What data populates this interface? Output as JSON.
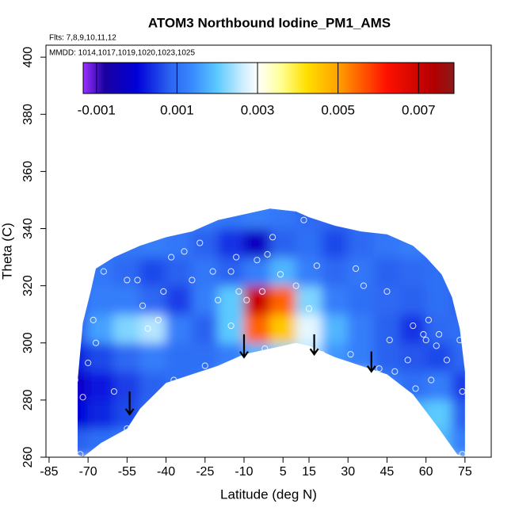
{
  "chart_data": {
    "type": "heatmap",
    "title": "ATOM3 Northbound Iodine_PM1_AMS",
    "annotations": [
      "Flts: 7,8,9,10,11,12",
      "MMDD: 1014,1017,1019,1020,1023,1025"
    ],
    "x_label": "Latitude (deg N)",
    "y_label": "Theta (C)",
    "xlim": [
      -86.2,
      85.1
    ],
    "ylim": [
      260,
      404.2
    ],
    "xticks": [
      -85,
      -70,
      -55,
      -40,
      -25,
      -10,
      5,
      15,
      30,
      45,
      60,
      75
    ],
    "yticks": [
      260,
      280,
      300,
      320,
      340,
      360,
      380,
      400
    ],
    "clim": [
      -0.00133,
      0.00788
    ],
    "cticks": [
      -0.001,
      0.001,
      0.003,
      0.005,
      0.007
    ],
    "colorscale": [
      {
        "value": -0.00133,
        "color": "#9b30ff"
      },
      {
        "value": -0.0008,
        "color": "#1a00a0"
      },
      {
        "value": 0.0,
        "color": "#0000d8"
      },
      {
        "value": 0.0008,
        "color": "#2a62f0"
      },
      {
        "value": 0.0014,
        "color": "#3a8cff"
      },
      {
        "value": 0.002,
        "color": "#5ccaff"
      },
      {
        "value": 0.0026,
        "color": "#c8ecff"
      },
      {
        "value": 0.003,
        "color": "#ffffff"
      },
      {
        "value": 0.0036,
        "color": "#ffff90"
      },
      {
        "value": 0.0042,
        "color": "#ffe000"
      },
      {
        "value": 0.005,
        "color": "#ffa000"
      },
      {
        "value": 0.0062,
        "color": "#ff1000"
      },
      {
        "value": 0.0074,
        "color": "#b00000"
      },
      {
        "value": 0.00788,
        "color": "#8b1a1a"
      }
    ],
    "grid": {
      "lat_edges": [
        -80,
        -70,
        -60,
        -50,
        -40,
        -30,
        -20,
        -10,
        0,
        10,
        20,
        30,
        40,
        50,
        60,
        70,
        80
      ],
      "theta_edges": [
        260,
        270,
        280,
        290,
        300,
        310,
        320,
        330,
        340,
        350
      ],
      "values": [
        [
          0.0008,
          0.001,
          0.0012,
          null,
          null,
          null,
          null,
          null,
          null,
          null,
          null,
          null,
          null,
          0.0016,
          0.0018,
          0.0012
        ],
        [
          0.0,
          0.0003,
          0.0006,
          0.0009,
          null,
          null,
          null,
          null,
          null,
          null,
          null,
          null,
          null,
          0.0018,
          0.002,
          0.0008
        ],
        [
          -0.0002,
          0.0002,
          0.0005,
          0.0008,
          0.001,
          0.0011,
          null,
          null,
          null,
          null,
          null,
          null,
          0.0012,
          0.001,
          0.0012,
          0.0005
        ],
        [
          0.0003,
          0.0006,
          0.0009,
          0.0012,
          0.001,
          0.001,
          0.0012,
          0.0018,
          0.0022,
          0.0025,
          0.0015,
          0.0012,
          0.0008,
          0.0007,
          0.0006,
          0.0009
        ],
        [
          0.0008,
          0.0016,
          0.0022,
          0.0025,
          0.0012,
          0.0008,
          0.002,
          0.0055,
          0.0045,
          0.0028,
          0.0018,
          0.0012,
          0.0008,
          0.0004,
          0.0009,
          0.001
        ],
        [
          0.001,
          0.0012,
          0.0012,
          0.0009,
          0.0005,
          0.0012,
          0.002,
          0.007,
          0.0055,
          0.0022,
          0.0012,
          0.001,
          0.0009,
          0.0008,
          0.001,
          0.0008
        ],
        [
          0.001,
          0.0011,
          0.0009,
          0.0006,
          0.0008,
          0.0011,
          0.0008,
          0.0012,
          0.0018,
          0.0012,
          0.0009,
          0.0011,
          0.0008,
          0.0009,
          0.001,
          0.0009
        ],
        [
          null,
          0.001,
          0.0011,
          0.0012,
          0.0011,
          0.0008,
          0.0004,
          -0.0003,
          0.0008,
          0.001,
          0.0006,
          0.0009,
          0.0011,
          0.0012,
          0.001,
          null
        ],
        [
          null,
          null,
          null,
          null,
          0.0011,
          0.0012,
          0.0011,
          0.0012,
          0.0011,
          0.0009,
          0.0009,
          0.001,
          0.001,
          null,
          null,
          null
        ]
      ]
    },
    "outline": {
      "x": [
        -74,
        -74,
        -72,
        -69,
        -67,
        -60,
        -50,
        -40,
        -30,
        -20,
        -10,
        0,
        10,
        15,
        25,
        35,
        45,
        55,
        60,
        66,
        70,
        73,
        75,
        75,
        72,
        65,
        55,
        45,
        35,
        25,
        15,
        10,
        0,
        -10,
        -20,
        -30,
        -40,
        -50,
        -55,
        -65,
        -72
      ],
      "y": [
        261,
        287,
        307,
        318,
        326,
        330,
        334,
        337,
        339,
        343,
        345,
        347,
        346,
        344,
        341,
        339,
        338,
        334,
        330,
        324,
        316,
        305,
        290,
        260,
        261,
        270,
        282,
        289,
        292,
        295,
        299,
        300,
        298,
        296,
        292,
        289,
        286,
        277,
        270,
        265,
        260
      ]
    },
    "points": {
      "x": [
        -73,
        -72,
        -75,
        -70,
        -67,
        -60,
        -55,
        -68,
        -64,
        -55,
        -51,
        -49,
        -47,
        -43,
        -41,
        -38,
        -37,
        -33,
        -30,
        -27,
        -25,
        -20,
        -22,
        -13,
        -12,
        -9,
        -5,
        -3,
        -1,
        -2,
        4,
        10,
        13,
        18,
        26,
        33,
        36,
        31,
        42,
        45,
        46,
        48,
        53,
        55,
        56,
        59,
        60,
        61,
        64,
        65,
        62,
        68,
        73,
        74,
        74,
        15,
        20,
        -15,
        1,
        -15
      ],
      "y": [
        261,
        281,
        287,
        293,
        300,
        283,
        270,
        308,
        325,
        322,
        322,
        313,
        305,
        308,
        318,
        330,
        287,
        332,
        322,
        335,
        292,
        315,
        325,
        330,
        318,
        315,
        329,
        318,
        331,
        298,
        324,
        320,
        343,
        327,
        343,
        326,
        320,
        296,
        291,
        318,
        301,
        290,
        294,
        306,
        284,
        303,
        301,
        308,
        299,
        303,
        287,
        294,
        301,
        283,
        261,
        312,
        296,
        325,
        337,
        306
      ]
    },
    "arrows": {
      "x": [
        -54,
        -10,
        17,
        39
      ],
      "y_start": [
        283,
        303,
        303,
        297
      ],
      "y_end": [
        275,
        295,
        296,
        290
      ]
    }
  }
}
